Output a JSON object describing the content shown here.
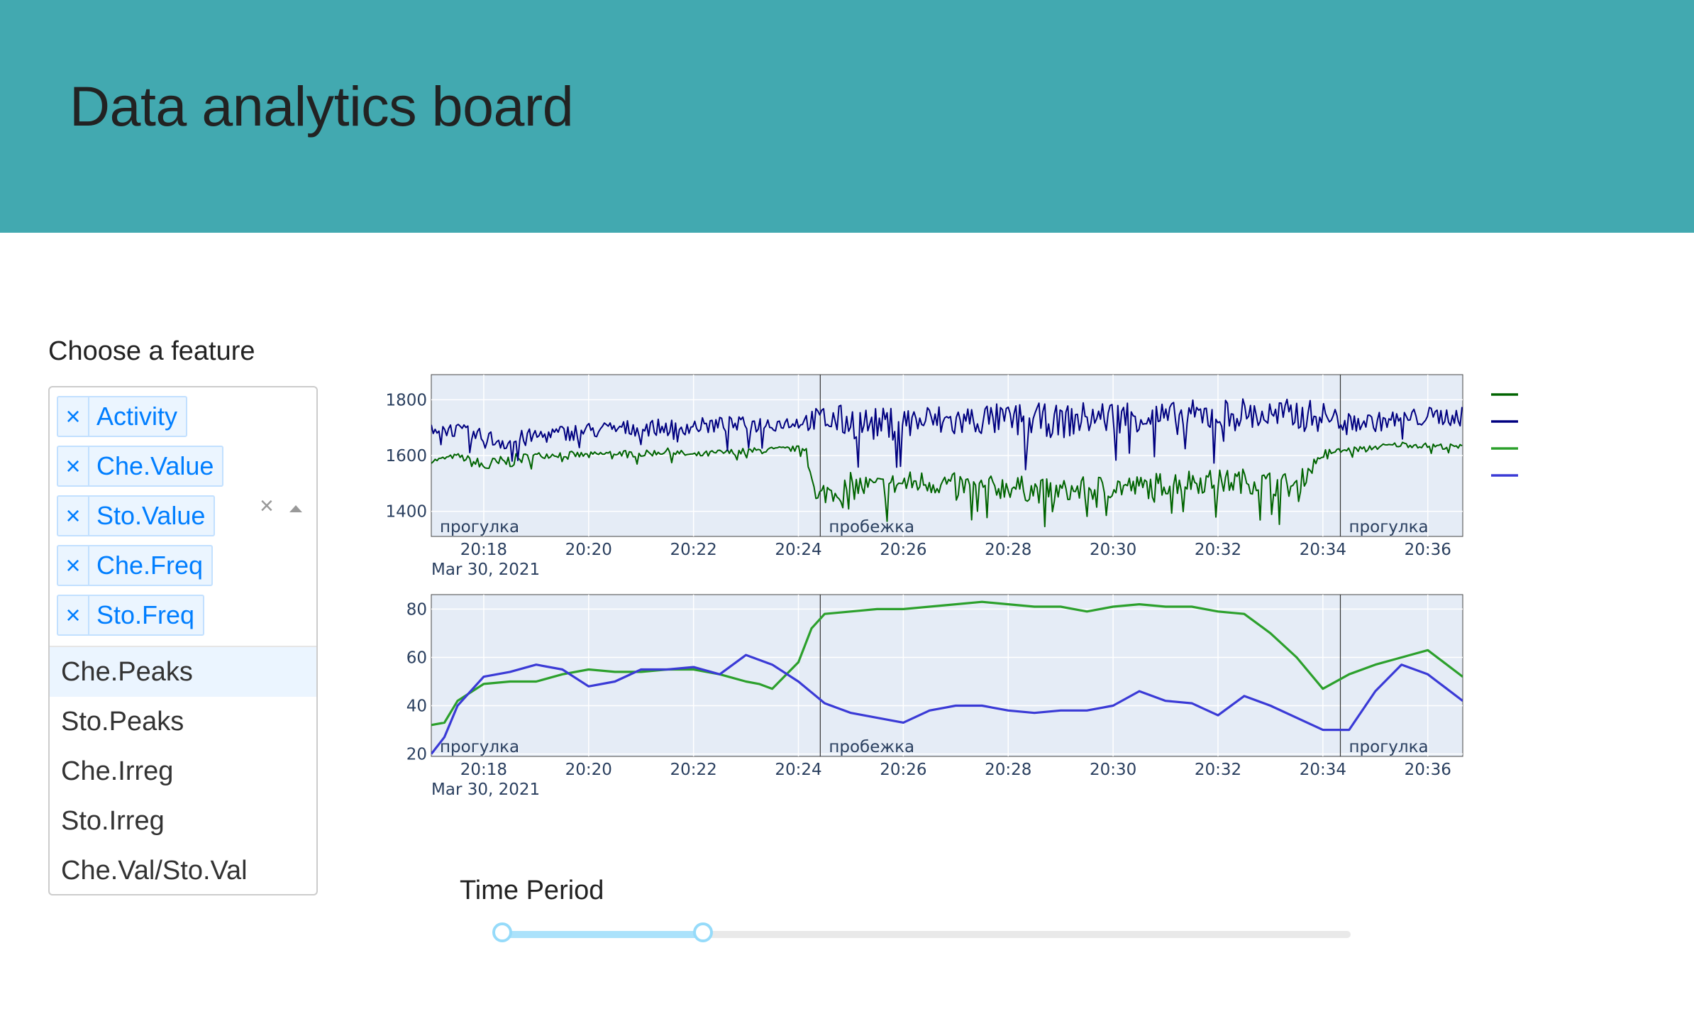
{
  "header": {
    "title": "Data analytics board"
  },
  "feature_select": {
    "label": "Choose a feature",
    "selected": [
      "Activity",
      "Che.Value",
      "Sto.Value",
      "Che.Freq",
      "Sto.Freq"
    ],
    "remove_glyph": "×",
    "clear_glyph": "×",
    "options": [
      "Che.Peaks",
      "Sto.Peaks",
      "Che.Irreg",
      "Sto.Irreg",
      "Che.Val/Sto.Val"
    ],
    "focused_option": "Che.Peaks"
  },
  "time_slider": {
    "label": "Time Period",
    "range_fraction": [
      0.0,
      0.237
    ]
  },
  "colors": {
    "header_bg": "#42a9b0",
    "plot_bg": "#e5ecf6",
    "che_value": "#006400",
    "sto_value": "#000080",
    "che_freq": "#2ca02c",
    "sto_freq": "#3a3ad6",
    "tag_text": "#007eff"
  },
  "chart_data": [
    {
      "type": "line",
      "title": "",
      "x_axis": {
        "ticks": [
          "20:18",
          "20:20",
          "20:22",
          "20:24",
          "20:26",
          "20:28",
          "20:30",
          "20:32",
          "20:34",
          "20:36"
        ],
        "date_label": "Mar 30, 2021",
        "range": [
          "20:17",
          "20:36:40"
        ]
      },
      "y_axis": {
        "ticks": [
          1400,
          1600,
          1800
        ],
        "range": [
          1310,
          1890
        ]
      },
      "grid": true,
      "legend_placement": "right",
      "activity_boundaries": [
        "20:24:25",
        "20:34:20"
      ],
      "activity_labels": [
        {
          "text": "прогулка",
          "start": "20:17"
        },
        {
          "text": "пробежка",
          "start": "20:24:25"
        },
        {
          "text": "прогулка",
          "start": "20:34:20"
        }
      ],
      "series": [
        {
          "name": "Che.Value",
          "color": "#006400",
          "x": [
            "20:17",
            "20:17:30",
            "20:18",
            "20:18:30",
            "20:19",
            "20:19:30",
            "20:20",
            "20:20:30",
            "20:21",
            "20:21:30",
            "20:22",
            "20:22:30",
            "20:23",
            "20:23:30",
            "20:24",
            "20:24:10",
            "20:24:20",
            "20:24:30",
            "20:25",
            "20:25:30",
            "20:26",
            "20:26:30",
            "20:27",
            "20:27:30",
            "20:28",
            "20:28:30",
            "20:29",
            "20:29:30",
            "20:30",
            "20:30:30",
            "20:31",
            "20:31:30",
            "20:32",
            "20:32:30",
            "20:33",
            "20:33:30",
            "20:34",
            "20:34:30",
            "20:35",
            "20:35:30",
            "20:36",
            "20:36:40"
          ],
          "values": [
            1580,
            1600,
            1560,
            1580,
            1600,
            1605,
            1600,
            1610,
            1605,
            1615,
            1600,
            1610,
            1615,
            1620,
            1625,
            1625,
            1430,
            1470,
            1490,
            1485,
            1500,
            1505,
            1495,
            1480,
            1490,
            1475,
            1470,
            1480,
            1490,
            1485,
            1500,
            1510,
            1505,
            1510,
            1500,
            1490,
            1610,
            1620,
            1630,
            1640,
            1635,
            1630
          ],
          "noise": [
            8,
            8,
            30,
            25,
            12,
            12,
            12,
            12,
            12,
            12,
            12,
            12,
            12,
            12,
            10,
            10,
            40,
            45,
            50,
            45,
            45,
            45,
            45,
            45,
            45,
            45,
            45,
            45,
            45,
            45,
            45,
            45,
            45,
            45,
            45,
            45,
            12,
            10,
            10,
            10,
            10,
            10
          ]
        },
        {
          "name": "Sto.Value",
          "color": "#000080",
          "x": [
            "20:17",
            "20:17:30",
            "20:18",
            "20:18:30",
            "20:19",
            "20:19:30",
            "20:20",
            "20:20:30",
            "20:21",
            "20:21:30",
            "20:22",
            "20:22:30",
            "20:23",
            "20:23:30",
            "20:24",
            "20:24:30",
            "20:25",
            "20:25:30",
            "20:26",
            "20:26:30",
            "20:27",
            "20:27:30",
            "20:28",
            "20:28:30",
            "20:29",
            "20:29:30",
            "20:30",
            "20:30:30",
            "20:31",
            "20:31:30",
            "20:32",
            "20:32:30",
            "20:33",
            "20:33:30",
            "20:34",
            "20:34:30",
            "20:35",
            "20:35:30",
            "20:36",
            "20:36:40"
          ],
          "values": [
            1700,
            1690,
            1660,
            1650,
            1670,
            1680,
            1690,
            1695,
            1700,
            1700,
            1705,
            1710,
            1710,
            1715,
            1720,
            1730,
            1720,
            1710,
            1720,
            1725,
            1720,
            1730,
            1725,
            1730,
            1720,
            1735,
            1740,
            1745,
            1730,
            1740,
            1745,
            1750,
            1740,
            1745,
            1740,
            1720,
            1720,
            1730,
            1740,
            1740
          ],
          "noise": [
            25,
            25,
            35,
            35,
            30,
            30,
            30,
            30,
            30,
            30,
            30,
            30,
            30,
            30,
            25,
            55,
            60,
            60,
            60,
            60,
            60,
            60,
            60,
            60,
            60,
            60,
            60,
            60,
            60,
            60,
            60,
            60,
            60,
            60,
            55,
            35,
            35,
            35,
            35,
            35
          ]
        }
      ]
    },
    {
      "type": "line",
      "title": "",
      "x_axis": {
        "ticks": [
          "20:18",
          "20:20",
          "20:22",
          "20:24",
          "20:26",
          "20:28",
          "20:30",
          "20:32",
          "20:34",
          "20:36"
        ],
        "date_label": "Mar 30, 2021",
        "range": [
          "20:17",
          "20:36:40"
        ]
      },
      "y_axis": {
        "ticks": [
          20,
          40,
          60,
          80
        ],
        "range": [
          19,
          86
        ]
      },
      "grid": true,
      "legend_placement": "right",
      "activity_boundaries": [
        "20:24:25",
        "20:34:20"
      ],
      "activity_labels": [
        {
          "text": "прогулка",
          "start": "20:17"
        },
        {
          "text": "пробежка",
          "start": "20:24:25"
        },
        {
          "text": "прогулка",
          "start": "20:34:20"
        }
      ],
      "series": [
        {
          "name": "Che.Freq",
          "color": "#2ca02c",
          "x": [
            "20:17",
            "20:17:15",
            "20:17:30",
            "20:18",
            "20:18:30",
            "20:19",
            "20:19:30",
            "20:20",
            "20:20:30",
            "20:21",
            "20:21:30",
            "20:22",
            "20:22:30",
            "20:23",
            "20:23:15",
            "20:23:30",
            "20:24",
            "20:24:15",
            "20:24:30",
            "20:25",
            "20:25:30",
            "20:26",
            "20:26:30",
            "20:27",
            "20:27:30",
            "20:28",
            "20:28:30",
            "20:29",
            "20:29:30",
            "20:30",
            "20:30:30",
            "20:31",
            "20:31:30",
            "20:32",
            "20:32:30",
            "20:33",
            "20:33:30",
            "20:34",
            "20:34:30",
            "20:35",
            "20:35:30",
            "20:36",
            "20:36:40"
          ],
          "values": [
            32,
            33,
            42,
            49,
            50,
            50,
            53,
            55,
            54,
            54,
            55,
            55,
            53,
            50,
            49,
            47,
            58,
            72,
            78,
            79,
            80,
            80,
            81,
            82,
            83,
            82,
            81,
            81,
            79,
            81,
            82,
            81,
            81,
            79,
            78,
            70,
            60,
            47,
            53,
            57,
            60,
            63,
            52
          ]
        },
        {
          "name": "Sto.Freq",
          "color": "#3a3ad6",
          "x": [
            "20:17",
            "20:17:15",
            "20:17:30",
            "20:18",
            "20:18:30",
            "20:19",
            "20:19:30",
            "20:20",
            "20:20:30",
            "20:21",
            "20:21:30",
            "20:22",
            "20:22:30",
            "20:23",
            "20:23:30",
            "20:24",
            "20:24:30",
            "20:25",
            "20:25:30",
            "20:26",
            "20:26:30",
            "20:27",
            "20:27:30",
            "20:28",
            "20:28:30",
            "20:29",
            "20:29:30",
            "20:30",
            "20:30:30",
            "20:31",
            "20:31:30",
            "20:32",
            "20:32:30",
            "20:33",
            "20:33:30",
            "20:34",
            "20:34:30",
            "20:35",
            "20:35:30",
            "20:36",
            "20:36:40"
          ],
          "values": [
            20,
            27,
            40,
            52,
            54,
            57,
            55,
            48,
            50,
            55,
            55,
            56,
            53,
            61,
            57,
            50,
            41,
            37,
            35,
            33,
            38,
            40,
            40,
            38,
            37,
            38,
            38,
            40,
            46,
            42,
            41,
            36,
            44,
            40,
            35,
            30,
            30,
            46,
            57,
            53,
            42
          ]
        }
      ]
    }
  ]
}
